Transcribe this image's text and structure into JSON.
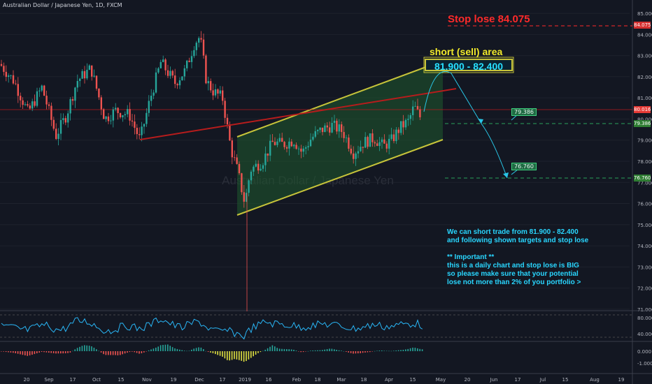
{
  "header": {
    "symbol_title": "Australian Dollar / Japanese Yen, 1D, FXCM"
  },
  "annotations": {
    "stop_loss": "Stop lose  84.075",
    "short_area": "short (sell) area",
    "short_range": "81.900 - 82.400",
    "target1": "79.386",
    "target2": "76.760",
    "notes": [
      "We can short trade from 81.900 - 82.400",
      "and following shown targets and stop lose",
      "",
      "** Important **",
      "this is a daily chart and stop lose is BIG",
      "so please make sure that your potential",
      "lose not more than 2% of you portfolio >"
    ]
  },
  "watermark": "Australian Dollar / Japanese Yen",
  "chart_data": {
    "type": "candlestick",
    "price_axis": {
      "ticks": [
        "85.000",
        "84.000",
        "83.000",
        "82.000",
        "81.000",
        "80.000",
        "79.000",
        "78.000",
        "77.000",
        "76.000",
        "75.000",
        "74.000",
        "73.000",
        "72.000",
        "71.000"
      ],
      "ylim": [
        70.6,
        85.3
      ]
    },
    "price_labels": {
      "stop": "84.075",
      "current": "80.016",
      "target1": "79.386",
      "target2": "76.760"
    },
    "x_ticks": [
      "20",
      "Sep",
      "17",
      "Oct",
      "15",
      "Nov",
      "19",
      "Dec",
      "17",
      "2019",
      "16",
      "Feb",
      "18",
      "Mar",
      "18",
      "Apr",
      "15",
      "May",
      "20",
      "Jun",
      "17",
      "Jul",
      "15",
      "Aug",
      "19"
    ],
    "rsi_axis": [
      "80.000",
      "40.000"
    ],
    "macd_axis": [
      "0.000",
      "-1.000"
    ],
    "colors": {
      "up": "#26a69a",
      "down": "#ef5350",
      "channel": "#c7c43a",
      "trend": "#b71c1c",
      "stop": "#ff2a2a",
      "target": "#2aa15a",
      "path": "#29c6e6",
      "rsi": "#29b6f6"
    }
  }
}
